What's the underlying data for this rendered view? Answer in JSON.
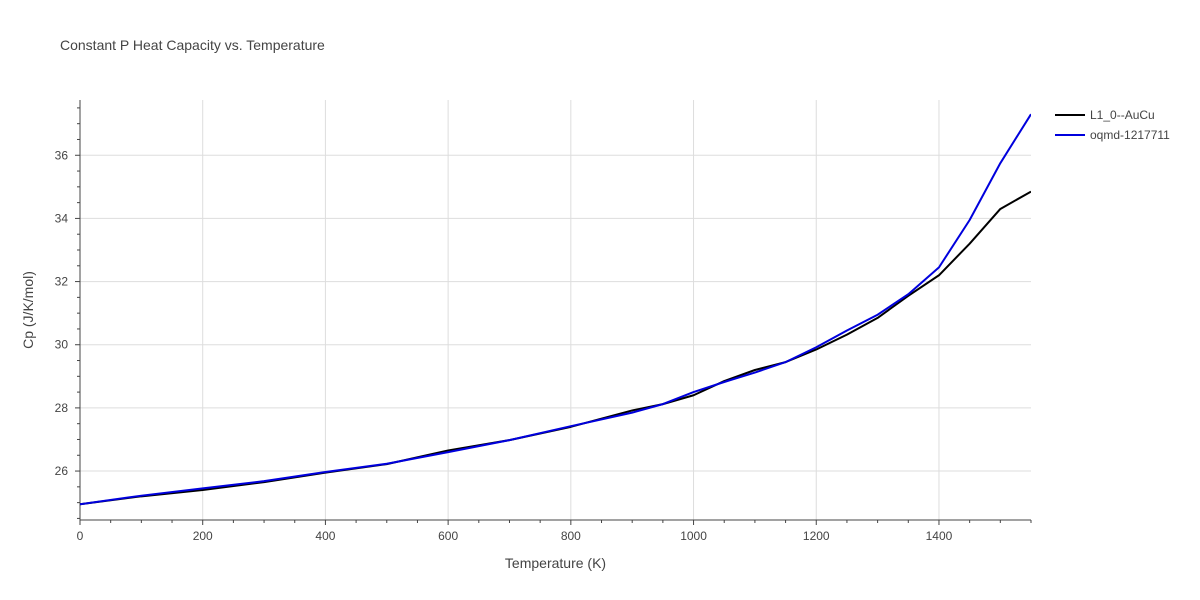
{
  "chart_data": {
    "type": "line",
    "title": "Constant P Heat Capacity vs. Temperature",
    "xlabel": "Temperature (K)",
    "ylabel": "Cp (J/K/mol)",
    "xlim": [
      0,
      1550
    ],
    "ylim": [
      24.45,
      37.75
    ],
    "xticks": [
      0,
      200,
      400,
      600,
      800,
      1000,
      1200,
      1400
    ],
    "yticks": [
      26,
      28,
      30,
      32,
      34,
      36
    ],
    "grid": true,
    "legend_position": "top-right outside",
    "series": [
      {
        "name": "L1_0--AuCu",
        "color": "#000000",
        "x": [
          0,
          100,
          200,
          300,
          400,
          500,
          600,
          700,
          800,
          900,
          950,
          1000,
          1050,
          1100,
          1150,
          1200,
          1250,
          1300,
          1350,
          1400,
          1450,
          1500,
          1550
        ],
        "y": [
          24.95,
          25.2,
          25.4,
          25.65,
          25.95,
          26.22,
          26.65,
          26.98,
          27.4,
          27.92,
          28.12,
          28.4,
          28.85,
          29.2,
          29.45,
          29.85,
          30.32,
          30.85,
          31.55,
          32.2,
          33.2,
          34.3,
          34.85
        ]
      },
      {
        "name": "oqmd-1217711",
        "color": "#0000dd",
        "x": [
          0,
          100,
          200,
          300,
          400,
          500,
          600,
          700,
          800,
          900,
          950,
          1000,
          1050,
          1100,
          1150,
          1200,
          1250,
          1300,
          1350,
          1400,
          1450,
          1500,
          1550
        ],
        "y": [
          24.95,
          25.22,
          25.45,
          25.68,
          25.97,
          26.23,
          26.6,
          26.98,
          27.42,
          27.85,
          28.12,
          28.5,
          28.82,
          29.12,
          29.45,
          29.92,
          30.45,
          30.95,
          31.6,
          32.45,
          33.95,
          35.75,
          37.3
        ]
      }
    ]
  }
}
